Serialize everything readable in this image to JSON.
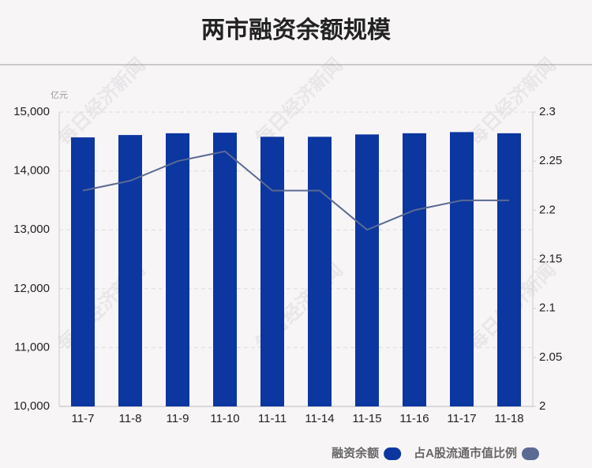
{
  "chart_data": {
    "type": "bar",
    "title": "两市融资余额规模",
    "y_label": "亿元",
    "watermark": "每日经济新闻",
    "categories": [
      "11-7",
      "11-8",
      "11-9",
      "11-10",
      "11-11",
      "11-14",
      "11-15",
      "11-16",
      "11-17",
      "11-18"
    ],
    "series": [
      {
        "name": "融资余额",
        "type": "bar",
        "color": "#0c36a0",
        "values": [
          14570,
          14610,
          14640,
          14650,
          14580,
          14580,
          14620,
          14640,
          14660,
          14640
        ]
      },
      {
        "name": "占A股流通市值比例",
        "type": "line",
        "axis": "y2",
        "color": "#5a6a92",
        "values": [
          2.22,
          2.23,
          2.25,
          2.26,
          2.22,
          2.22,
          2.18,
          2.2,
          2.21,
          2.21
        ]
      }
    ],
    "ylim": [
      10000,
      15000
    ],
    "yticks": [
      {
        "value": 10000,
        "label": "10,000"
      },
      {
        "value": 11000,
        "label": "11,000"
      },
      {
        "value": 12000,
        "label": "12,000"
      },
      {
        "value": 13000,
        "label": "13,000"
      },
      {
        "value": 14000,
        "label": "14,000"
      },
      {
        "value": 15000,
        "label": "15,000"
      }
    ],
    "y2lim": [
      2,
      2.3
    ],
    "y2ticks": [
      2,
      2.05,
      2.1,
      2.15,
      2.2,
      2.25,
      2.3
    ],
    "grid": true,
    "legend": "bottom-right"
  }
}
